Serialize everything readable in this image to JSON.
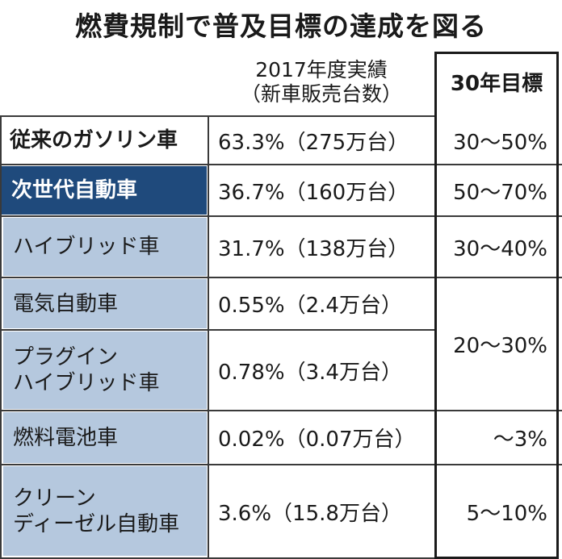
{
  "title": "燃費規制で普及目標の達成を図る",
  "header": {
    "actual_line1": "2017年度実績",
    "actual_line2": "（新車販売台数）",
    "target": "30年目標"
  },
  "rows": [
    {
      "label": "従来のガソリン車",
      "value": "63.3%（275万台）",
      "target": "30〜50%"
    },
    {
      "label": "次世代自動車",
      "value": "36.7%（160万台）",
      "target": "50〜70%"
    },
    {
      "label": "ハイブリッド車",
      "value": "31.7%（138万台）",
      "target": "30〜40%"
    },
    {
      "label": "電気自動車",
      "value": "0.55%（2.4万台）"
    },
    {
      "label_line1": "プラグイン",
      "label_line2": "ハイブリッド車",
      "value": "0.78%（3.4万台）"
    },
    {
      "label": "燃料電池車",
      "value": "0.02%（0.07万台）",
      "target": "〜3%"
    },
    {
      "label_line1": "クリーン",
      "label_line2": "ディーゼル自動車",
      "value": "3.6%（15.8万台）",
      "target": "5〜10%"
    }
  ],
  "merged_target": "20〜30%",
  "colors": {
    "next_gen_header": "#1f4a7c",
    "sub_rows": "#b5c8de"
  }
}
